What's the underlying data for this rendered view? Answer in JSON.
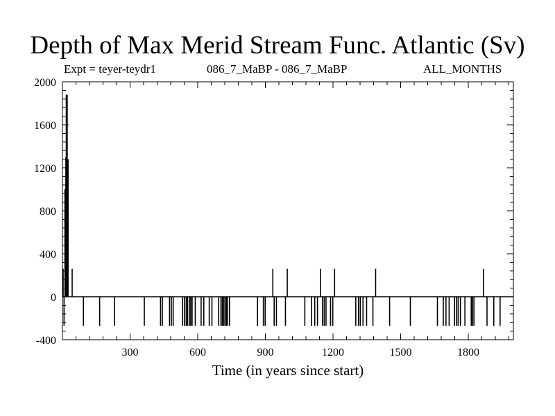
{
  "chart_data": {
    "type": "line",
    "title": "Depth of Max Merid Stream Func. Atlantic (Sv)",
    "subtitle_left": "Expt = teyer-teydr1",
    "subtitle_center": "086_7_MaBP - 086_7_MaBP",
    "subtitle_right": "ALL_MONTHS",
    "xlabel": "Time (in years since start)",
    "ylabel": "",
    "xlim": [
      0,
      2000
    ],
    "ylim": [
      -400,
      2000
    ],
    "xticks": [
      300,
      600,
      900,
      1200,
      1500,
      1800
    ],
    "yticks": [
      -400,
      0,
      400,
      800,
      1200,
      1600,
      2000
    ],
    "grid": false,
    "baseline": 0,
    "series": [
      {
        "spikes": [
          {
            "x": 0,
            "y": 260
          },
          {
            "x": 4,
            "y": -270
          },
          {
            "x": 8,
            "y": 1000
          },
          {
            "x": 12,
            "y": 1300
          },
          {
            "x": 14,
            "y": 1880
          },
          {
            "x": 18,
            "y": 1880
          },
          {
            "x": 22,
            "y": 1280
          },
          {
            "x": 40,
            "y": 260
          },
          {
            "x": 90,
            "y": -270
          },
          {
            "x": 162,
            "y": -270
          },
          {
            "x": 228,
            "y": -270
          },
          {
            "x": 360,
            "y": -270
          },
          {
            "x": 432,
            "y": -270
          },
          {
            "x": 440,
            "y": -270
          },
          {
            "x": 472,
            "y": -270
          },
          {
            "x": 480,
            "y": -270
          },
          {
            "x": 488,
            "y": -270
          },
          {
            "x": 530,
            "y": -270
          },
          {
            "x": 538,
            "y": -270
          },
          {
            "x": 546,
            "y": -270
          },
          {
            "x": 552,
            "y": -270
          },
          {
            "x": 560,
            "y": -270
          },
          {
            "x": 566,
            "y": -270
          },
          {
            "x": 572,
            "y": -270
          },
          {
            "x": 586,
            "y": -270
          },
          {
            "x": 612,
            "y": -270
          },
          {
            "x": 624,
            "y": -270
          },
          {
            "x": 648,
            "y": -270
          },
          {
            "x": 660,
            "y": -270
          },
          {
            "x": 690,
            "y": -270
          },
          {
            "x": 700,
            "y": -270
          },
          {
            "x": 706,
            "y": -270
          },
          {
            "x": 712,
            "y": -270
          },
          {
            "x": 718,
            "y": -270
          },
          {
            "x": 724,
            "y": -270
          },
          {
            "x": 730,
            "y": -270
          },
          {
            "x": 738,
            "y": -270
          },
          {
            "x": 862,
            "y": -270
          },
          {
            "x": 888,
            "y": -270
          },
          {
            "x": 896,
            "y": -270
          },
          {
            "x": 930,
            "y": 260
          },
          {
            "x": 936,
            "y": -270
          },
          {
            "x": 946,
            "y": -270
          },
          {
            "x": 986,
            "y": -270
          },
          {
            "x": 994,
            "y": 260
          },
          {
            "x": 1072,
            "y": -270
          },
          {
            "x": 1102,
            "y": -270
          },
          {
            "x": 1116,
            "y": -270
          },
          {
            "x": 1128,
            "y": -270
          },
          {
            "x": 1142,
            "y": 260
          },
          {
            "x": 1150,
            "y": -270
          },
          {
            "x": 1158,
            "y": -270
          },
          {
            "x": 1166,
            "y": -270
          },
          {
            "x": 1186,
            "y": -270
          },
          {
            "x": 1196,
            "y": -270
          },
          {
            "x": 1204,
            "y": 260
          },
          {
            "x": 1298,
            "y": -270
          },
          {
            "x": 1310,
            "y": -270
          },
          {
            "x": 1318,
            "y": -270
          },
          {
            "x": 1330,
            "y": -270
          },
          {
            "x": 1346,
            "y": -270
          },
          {
            "x": 1374,
            "y": -270
          },
          {
            "x": 1386,
            "y": 260
          },
          {
            "x": 1448,
            "y": -270
          },
          {
            "x": 1540,
            "y": -270
          },
          {
            "x": 1660,
            "y": -270
          },
          {
            "x": 1686,
            "y": -270
          },
          {
            "x": 1698,
            "y": -270
          },
          {
            "x": 1712,
            "y": -270
          },
          {
            "x": 1736,
            "y": -270
          },
          {
            "x": 1744,
            "y": -270
          },
          {
            "x": 1752,
            "y": -270
          },
          {
            "x": 1762,
            "y": -270
          },
          {
            "x": 1782,
            "y": -270
          },
          {
            "x": 1810,
            "y": -270
          },
          {
            "x": 1816,
            "y": -270
          },
          {
            "x": 1822,
            "y": -270
          },
          {
            "x": 1864,
            "y": 260
          },
          {
            "x": 1880,
            "y": -270
          },
          {
            "x": 1910,
            "y": -270
          },
          {
            "x": 1938,
            "y": -270
          }
        ]
      }
    ]
  }
}
